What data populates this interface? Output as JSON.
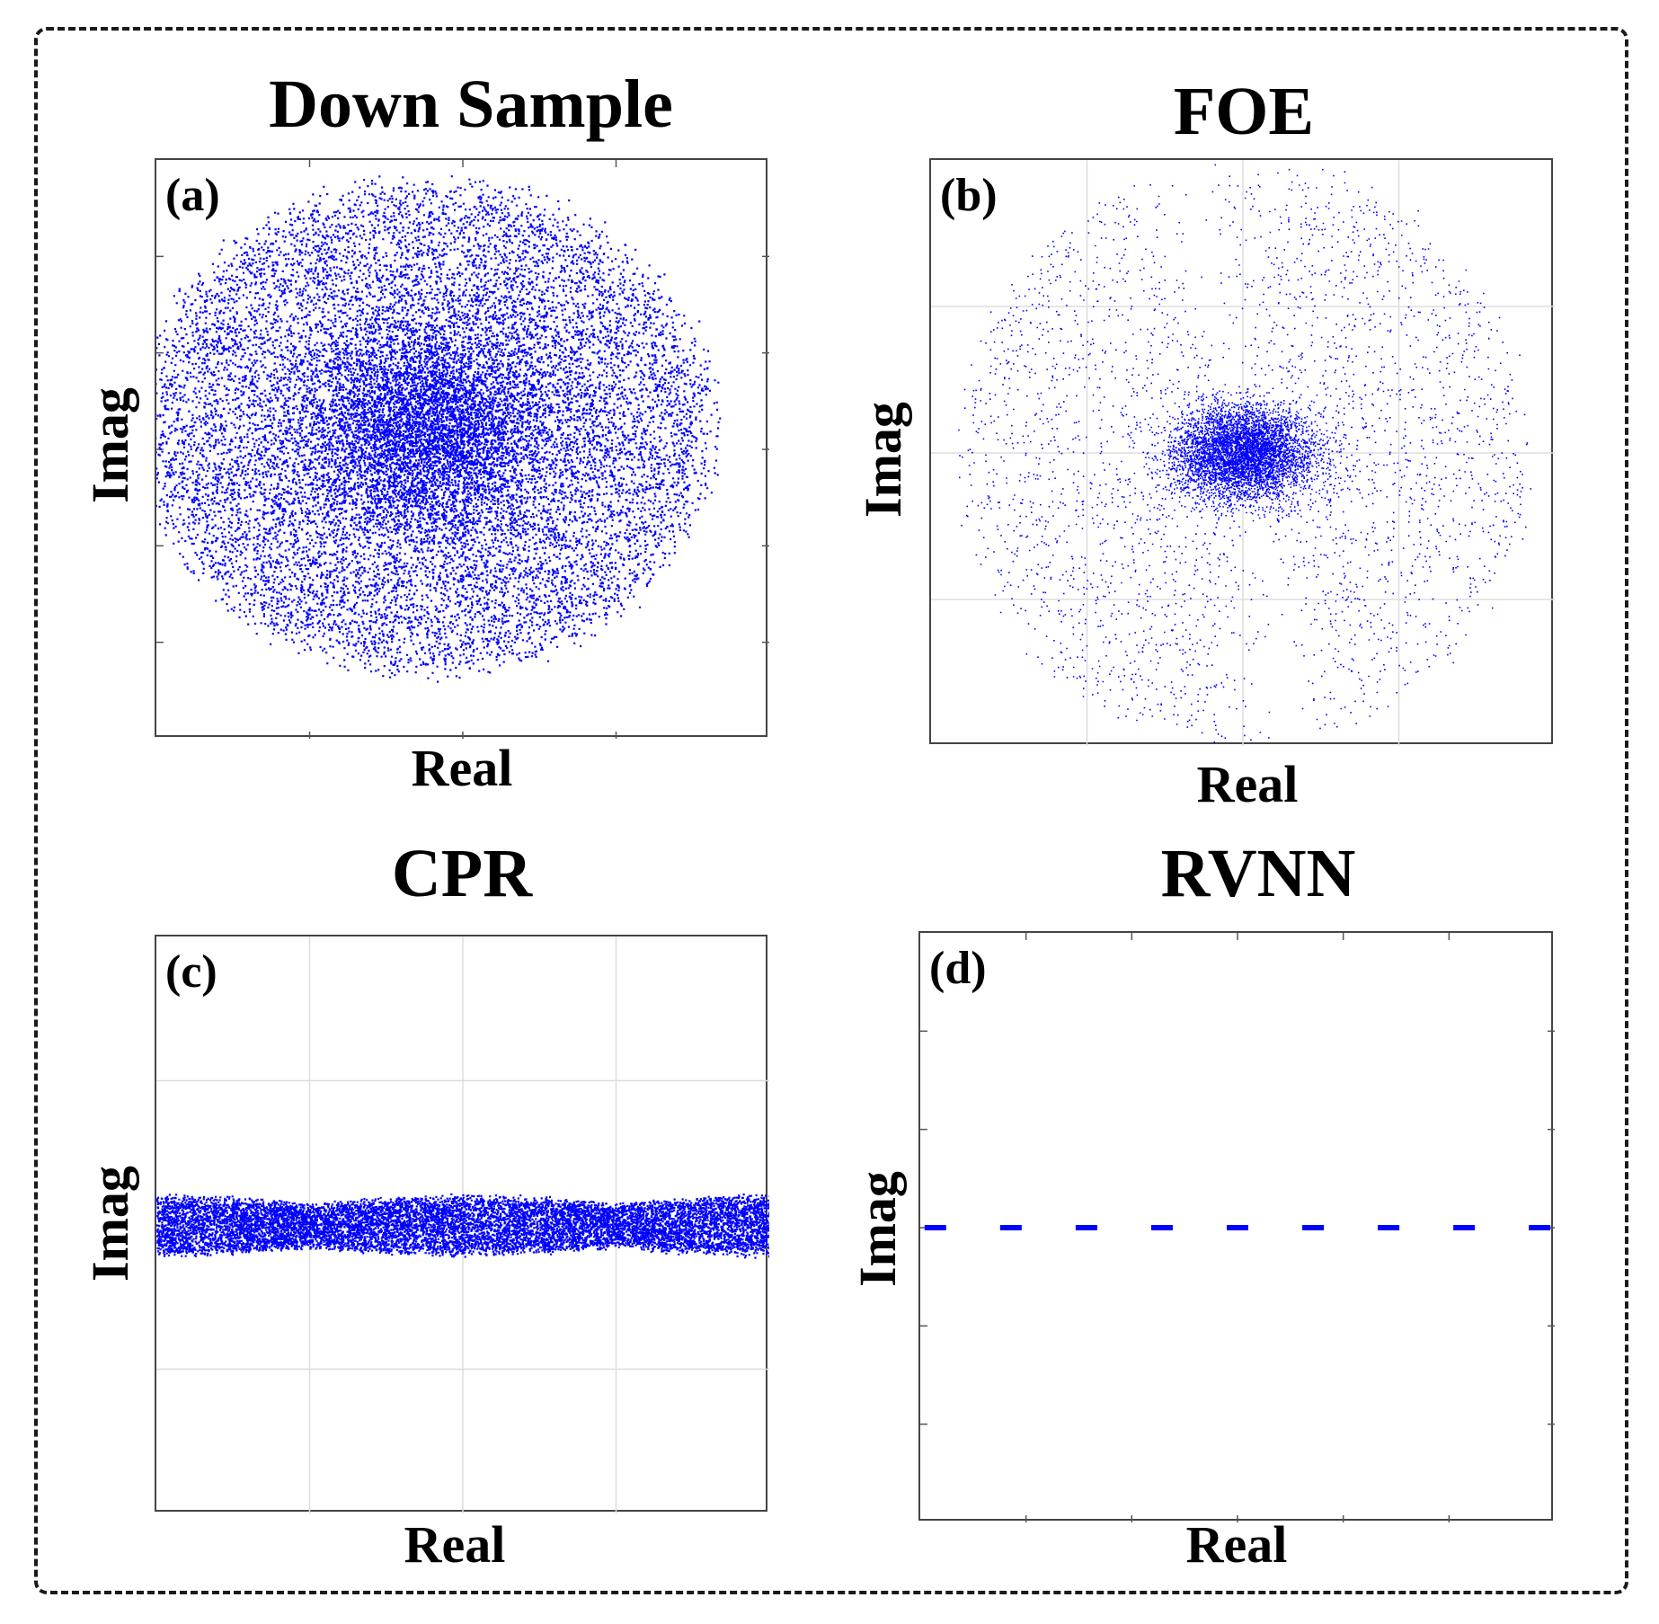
{
  "chart_data": [
    {
      "type": "scatter",
      "title": "Down Sample",
      "panel_label": "(a)",
      "xlabel": "Real",
      "ylabel": "Imag",
      "grid": false,
      "series": [
        {
          "distribution": "filled ellipse, dense core",
          "center": [
            0,
            0
          ],
          "semi_axes": [
            1.0,
            0.65
          ],
          "color": "#0000ff"
        }
      ]
    },
    {
      "type": "scatter",
      "title": "FOE",
      "panel_label": "(b)",
      "xlabel": "Real",
      "ylabel": "Imag",
      "grid": true,
      "series": [
        {
          "distribution": "two-lobed disk (butterfly) with dense center",
          "center": [
            0,
            0
          ],
          "radius": 1.0,
          "color": "#0000ff"
        }
      ]
    },
    {
      "type": "scatter",
      "title": "CPR",
      "panel_label": "(c)",
      "xlabel": "Real",
      "ylabel": "Imag",
      "grid": true,
      "series": [
        {
          "distribution": "horizontal band",
          "imag_center": 0,
          "band_halfwidth": 0.12,
          "color": "#0000ff"
        }
      ]
    },
    {
      "type": "scatter",
      "title": "RVNN",
      "panel_label": "(d)",
      "xlabel": "Real",
      "ylabel": "Imag",
      "grid": false,
      "series": [
        {
          "distribution": "discrete points on real axis",
          "x": [
            -1,
            -0.75,
            -0.5,
            -0.25,
            0,
            0.25,
            0.5,
            0.75,
            1
          ],
          "y": [
            0,
            0,
            0,
            0,
            0,
            0,
            0,
            0,
            0
          ],
          "color": "#0000ff"
        }
      ]
    }
  ]
}
